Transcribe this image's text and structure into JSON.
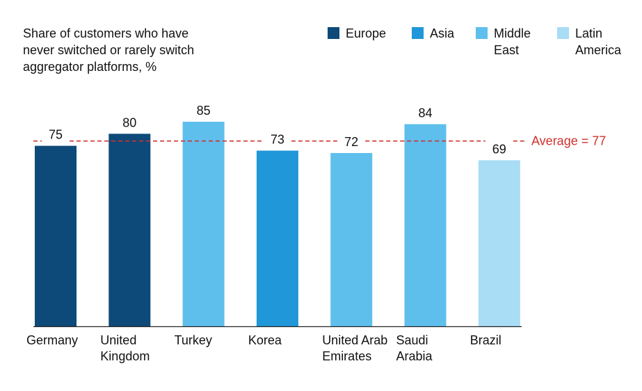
{
  "colors": {
    "europe": "#0d4a79",
    "asia": "#1f97d8",
    "middle_east": "#5ebfed",
    "latin_america": "#a9dcf5",
    "average_line": "#d0312d",
    "axis": "#222222"
  },
  "chart_data": {
    "type": "bar",
    "title": "Share of customers who have\nnever switched or rarely switch\naggregator platforms, %",
    "categories": [
      "Germany",
      "United\nKingdom",
      "Turkey",
      "Korea",
      "United Arab\nEmirates",
      "Saudi\nArabia",
      "Brazil"
    ],
    "values": [
      75,
      80,
      85,
      73,
      72,
      84,
      69
    ],
    "regions": [
      "Europe",
      "Europe",
      "Middle\nEast",
      "Asia",
      "Middle\nEast",
      "Middle\nEast",
      "Latin\nAmerica"
    ],
    "legend": [
      "Europe",
      "Asia",
      "Middle\nEast",
      "Latin\nAmerica"
    ],
    "legend_position": "top-right",
    "average": {
      "value": 77,
      "label": "Average = 77"
    },
    "ylim": [
      0,
      85
    ],
    "grid": false,
    "xlabel": "",
    "ylabel": ""
  }
}
